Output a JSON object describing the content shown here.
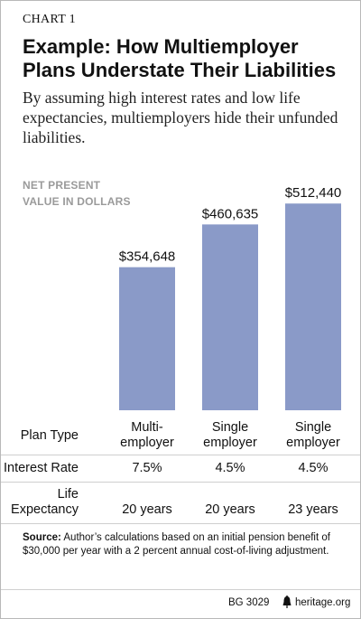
{
  "header": {
    "kicker": "CHART 1",
    "title": "Example: How Multiemployer Plans Understate Their Liabilities",
    "subtitle": "By assuming high interest rates and low life expectancies, multiemployers hide their unfunded liabilities."
  },
  "colors": {
    "bar": "#8a9ac8",
    "axis_label": "#9a9a9a",
    "rule": "#cfcfcf"
  },
  "chart_data": {
    "type": "bar",
    "ylabel": "NET PRESENT VALUE IN DOLLARS",
    "ylabel_lines": [
      "NET PRESENT",
      "VALUE IN DOLLARS"
    ],
    "categories": [
      "Multiemployer",
      "Single employer",
      "Single employer"
    ],
    "values": [
      354648,
      460635,
      512440
    ],
    "value_labels": [
      "$354,648",
      "$460,635",
      "$512,440"
    ],
    "ylim": [
      0,
      560000
    ],
    "grid": false,
    "legend": "none"
  },
  "table": {
    "rows": [
      {
        "label": [
          "Plan Type"
        ],
        "cells": [
          [
            "Multi-",
            "employer"
          ],
          [
            "Single",
            "employer"
          ],
          [
            "Single",
            "employer"
          ]
        ]
      },
      {
        "label": [
          "Interest Rate"
        ],
        "cells": [
          [
            "7.5%"
          ],
          [
            "4.5%"
          ],
          [
            "4.5%"
          ]
        ]
      },
      {
        "label": [
          "Life",
          "Expectancy"
        ],
        "cells": [
          [
            "20 years"
          ],
          [
            "20 years"
          ],
          [
            "23 years"
          ]
        ]
      }
    ]
  },
  "source": {
    "label": "Source:",
    "text": "Author’s calculations based on an initial pension benefit of $30,000 per year with a 2 percent annual cost-of-living adjustment."
  },
  "footer": {
    "code": "BG 3029",
    "site": "heritage.org",
    "icon": "liberty-bell-icon"
  }
}
